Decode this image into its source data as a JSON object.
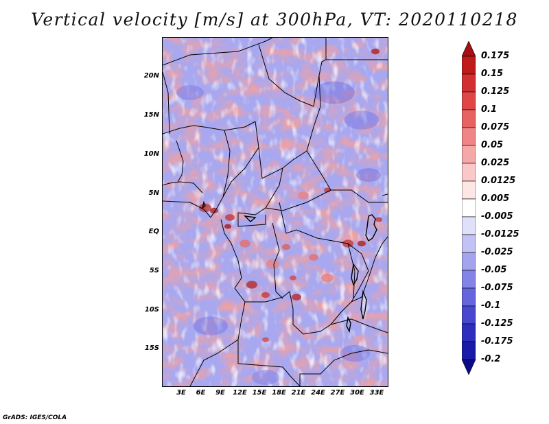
{
  "title": "Vertical velocity [m/s] at 300hPa, VT: 2020110218",
  "lat_labels": [
    "20N",
    "15N",
    "10N",
    "5N",
    "EQ",
    "5S",
    "10S",
    "15S"
  ],
  "lon_labels": [
    "3E",
    "6E",
    "9E",
    "12E",
    "15E",
    "18E",
    "21E",
    "24E",
    "27E",
    "30E",
    "33E"
  ],
  "colorbar": {
    "labels": [
      "0.175",
      "0.15",
      "0.125",
      "0.1",
      "0.075",
      "0.05",
      "0.025",
      "0.0125",
      "0.005",
      "-0.005",
      "-0.0125",
      "-0.025",
      "-0.05",
      "-0.075",
      "-0.1",
      "-0.125",
      "-0.175",
      "-0.2"
    ],
    "colors": [
      "#a50f15",
      "#c01b1b",
      "#d23030",
      "#e04646",
      "#e86262",
      "#ef8585",
      "#f5a8a8",
      "#fac8c8",
      "#fde6e6",
      "#ffffff",
      "#e0e0fb",
      "#c2c2f5",
      "#a4a4ee",
      "#8484e6",
      "#6565dc",
      "#4848ce",
      "#2e2ebe",
      "#1a1aa8",
      "#0b0b8a"
    ]
  },
  "footer": "GrADS: IGES/COLA"
}
